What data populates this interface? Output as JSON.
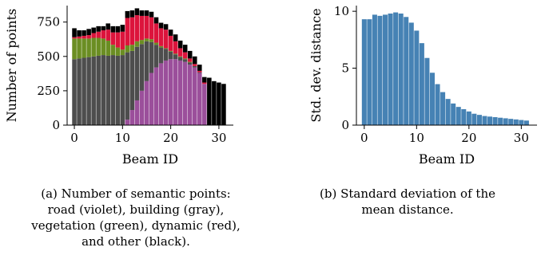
{
  "chart_data": [
    {
      "type": "bar",
      "stacked": true,
      "xlabel": "Beam ID",
      "ylabel": "Number of points",
      "xlim": [
        -1.5,
        33
      ],
      "ylim": [
        0,
        870
      ],
      "xticks": [
        0,
        10,
        20,
        30
      ],
      "yticks": [
        0,
        250,
        500,
        750
      ],
      "grid": false,
      "x": [
        0,
        1,
        2,
        3,
        4,
        5,
        6,
        7,
        8,
        9,
        10,
        11,
        12,
        13,
        14,
        15,
        16,
        17,
        18,
        19,
        20,
        21,
        22,
        23,
        24,
        25,
        26,
        27,
        28,
        29,
        30,
        31
      ],
      "series": [
        {
          "name": "road",
          "color": "#9b4f9b",
          "values": [
            0,
            0,
            0,
            0,
            0,
            0,
            0,
            0,
            0,
            0,
            0,
            40,
            110,
            180,
            250,
            320,
            380,
            420,
            450,
            470,
            480,
            480,
            470,
            460,
            440,
            420,
            380,
            300,
            0,
            0,
            0,
            0
          ]
        },
        {
          "name": "building",
          "color": "#4d4d4d",
          "values": [
            480,
            485,
            490,
            495,
            500,
            505,
            510,
            505,
            510,
            505,
            510,
            490,
            430,
            390,
            340,
            290,
            225,
            165,
            115,
            85,
            55,
            35,
            25,
            20,
            15,
            10,
            5,
            0,
            0,
            0,
            0,
            0
          ]
        },
        {
          "name": "vegetation",
          "color": "#6b8e23",
          "values": [
            150,
            145,
            140,
            135,
            135,
            130,
            120,
            110,
            75,
            60,
            40,
            50,
            45,
            40,
            30,
            20,
            20,
            15,
            10,
            5,
            5,
            5,
            5,
            5,
            5,
            0,
            0,
            0,
            0,
            0,
            0,
            0
          ]
        },
        {
          "name": "dynamic",
          "color": "#dc143c",
          "values": [
            10,
            15,
            20,
            25,
            35,
            45,
            60,
            80,
            90,
            110,
            130,
            200,
            200,
            190,
            175,
            165,
            160,
            140,
            130,
            135,
            110,
            90,
            60,
            45,
            25,
            15,
            10,
            10,
            0,
            0,
            0,
            0
          ]
        },
        {
          "name": "other",
          "color": "#000000",
          "values": [
            65,
            45,
            40,
            45,
            40,
            40,
            30,
            45,
            45,
            45,
            50,
            50,
            50,
            50,
            40,
            40,
            40,
            45,
            40,
            40,
            45,
            50,
            55,
            55,
            55,
            55,
            45,
            40,
            345,
            320,
            310,
            300
          ]
        }
      ]
    },
    {
      "type": "bar",
      "xlabel": "Beam ID",
      "ylabel": "Std. dev. distance",
      "xlim": [
        -1.5,
        33
      ],
      "ylim": [
        0,
        10.5
      ],
      "xticks": [
        0,
        10,
        20,
        30
      ],
      "yticks": [
        0,
        5,
        10
      ],
      "grid": false,
      "color": "#4682b4",
      "x": [
        0,
        1,
        2,
        3,
        4,
        5,
        6,
        7,
        8,
        9,
        10,
        11,
        12,
        13,
        14,
        15,
        16,
        17,
        18,
        19,
        20,
        21,
        22,
        23,
        24,
        25,
        26,
        27,
        28,
        29,
        30,
        31
      ],
      "values": [
        9.3,
        9.3,
        9.7,
        9.6,
        9.7,
        9.8,
        9.9,
        9.8,
        9.5,
        9.0,
        8.3,
        7.2,
        5.9,
        4.6,
        3.6,
        2.9,
        2.3,
        1.9,
        1.6,
        1.4,
        1.2,
        1.0,
        0.9,
        0.8,
        0.75,
        0.7,
        0.65,
        0.6,
        0.55,
        0.5,
        0.45,
        0.4
      ]
    }
  ],
  "captions": {
    "a": [
      "(a) Number of semantic points:",
      "road (violet), building (gray),",
      "vegetation (green), dynamic (red),",
      "and other (black)."
    ],
    "b": [
      "(b) Standard deviation of the",
      "mean distance."
    ]
  }
}
